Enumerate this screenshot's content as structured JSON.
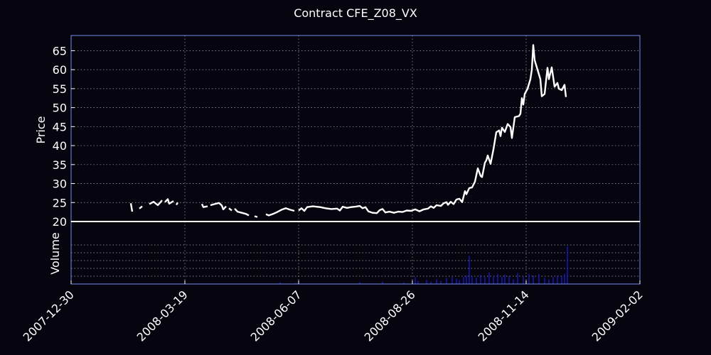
{
  "chart_data": {
    "type": "line",
    "title": "Contract CFE_Z08_VX",
    "background": "#06040e",
    "frame_color": "#6f8fe8",
    "grid": true,
    "price_panel": {
      "ylabel": "Price",
      "ylim": [
        20,
        69
      ],
      "yticks": [
        "20",
        "25",
        "30",
        "35",
        "40",
        "45",
        "50",
        "55",
        "60",
        "65"
      ],
      "baseline": 20,
      "series": [
        {
          "color": "#ffffff",
          "segments": [
            [
              [
                "2008-02-10",
                24.8
              ],
              [
                "2008-02-11",
                22.6
              ]
            ],
            [
              [
                "2008-02-16",
                23.4
              ],
              [
                "2008-02-18",
                24.0
              ]
            ],
            [
              [
                "2008-02-23",
                24.6
              ],
              [
                "2008-02-26",
                25.2
              ],
              [
                "2008-02-29",
                24.3
              ],
              [
                "2008-03-03",
                25.6
              ]
            ],
            [
              [
                "2008-03-05",
                25.1
              ],
              [
                "2008-03-07",
                25.9
              ],
              [
                "2008-03-08",
                24.7
              ],
              [
                "2008-03-11",
                25.4
              ]
            ],
            [
              [
                "2008-03-13",
                24.4
              ],
              [
                "2008-03-14",
                25.0
              ]
            ],
            [
              [
                "2008-03-31",
                24.6
              ],
              [
                "2008-04-01",
                23.8
              ],
              [
                "2008-04-04",
                24.0
              ]
            ],
            [
              [
                "2008-04-06",
                24.3
              ],
              [
                "2008-04-09",
                24.6
              ],
              [
                "2008-04-12",
                24.9
              ],
              [
                "2008-04-14",
                24.2
              ],
              [
                "2008-04-15",
                23.2
              ],
              [
                "2008-04-17",
                24.0
              ]
            ],
            [
              [
                "2008-04-19",
                23.5
              ],
              [
                "2008-04-21",
                22.9
              ]
            ],
            [
              [
                "2008-04-23",
                23.4
              ],
              [
                "2008-04-25",
                22.6
              ],
              [
                "2008-04-28",
                22.3
              ],
              [
                "2008-05-01",
                22.0
              ],
              [
                "2008-05-03",
                21.6
              ]
            ],
            [
              [
                "2008-05-07",
                21.4
              ],
              [
                "2008-05-09",
                21.2
              ]
            ],
            [
              [
                "2008-05-15",
                21.9
              ],
              [
                "2008-05-17",
                21.6
              ],
              [
                "2008-05-20",
                22.0
              ],
              [
                "2008-05-23",
                22.5
              ],
              [
                "2008-05-26",
                23.1
              ],
              [
                "2008-05-29",
                23.5
              ],
              [
                "2008-06-01",
                23.1
              ],
              [
                "2008-06-04",
                22.8
              ]
            ],
            [
              [
                "2008-06-07",
                22.9
              ],
              [
                "2008-06-09",
                23.5
              ],
              [
                "2008-06-11",
                22.8
              ],
              [
                "2008-06-13",
                23.8
              ],
              [
                "2008-06-17",
                24.0
              ],
              [
                "2008-06-22",
                23.8
              ],
              [
                "2008-06-26",
                23.5
              ],
              [
                "2008-06-30",
                23.3
              ],
              [
                "2008-07-04",
                23.4
              ],
              [
                "2008-07-06",
                22.9
              ],
              [
                "2008-07-08",
                23.9
              ],
              [
                "2008-07-11",
                23.6
              ],
              [
                "2008-07-14",
                23.8
              ],
              [
                "2008-07-17",
                23.9
              ],
              [
                "2008-07-20",
                24.1
              ],
              [
                "2008-07-22",
                23.5
              ],
              [
                "2008-07-24",
                23.8
              ],
              [
                "2008-07-26",
                22.7
              ],
              [
                "2008-07-29",
                22.3
              ],
              [
                "2008-08-01",
                22.2
              ],
              [
                "2008-08-03",
                23.0
              ],
              [
                "2008-08-05",
                23.3
              ],
              [
                "2008-08-07",
                22.4
              ],
              [
                "2008-08-10",
                22.6
              ],
              [
                "2008-08-13",
                22.3
              ],
              [
                "2008-08-16",
                22.6
              ],
              [
                "2008-08-19",
                22.5
              ],
              [
                "2008-08-22",
                22.9
              ],
              [
                "2008-08-25",
                22.8
              ],
              [
                "2008-08-28",
                23.2
              ],
              [
                "2008-08-31",
                22.7
              ],
              [
                "2008-09-03",
                23.2
              ],
              [
                "2008-09-06",
                23.4
              ],
              [
                "2008-09-08",
                24.0
              ],
              [
                "2008-09-10",
                23.6
              ],
              [
                "2008-09-12",
                24.3
              ],
              [
                "2008-09-15",
                24.1
              ],
              [
                "2008-09-17",
                24.8
              ],
              [
                "2008-09-19",
                25.1
              ],
              [
                "2008-09-20",
                24.4
              ],
              [
                "2008-09-22",
                25.2
              ],
              [
                "2008-09-24",
                24.6
              ],
              [
                "2008-09-26",
                25.8
              ],
              [
                "2008-09-28",
                26.0
              ],
              [
                "2008-09-30",
                25.1
              ],
              [
                "2008-10-02",
                28.0
              ],
              [
                "2008-10-03",
                27.2
              ],
              [
                "2008-10-05",
                28.8
              ],
              [
                "2008-10-07",
                29.0
              ],
              [
                "2008-10-09",
                30.5
              ],
              [
                "2008-10-11",
                34.0
              ],
              [
                "2008-10-13",
                32.0
              ],
              [
                "2008-10-14",
                31.7
              ],
              [
                "2008-10-16",
                35.5
              ],
              [
                "2008-10-17",
                36.1
              ],
              [
                "2008-10-18",
                37.4
              ],
              [
                "2008-10-20",
                35.2
              ],
              [
                "2008-10-22",
                39.0
              ],
              [
                "2008-10-24",
                43.5
              ],
              [
                "2008-10-26",
                44.0
              ],
              [
                "2008-10-27",
                42.5
              ],
              [
                "2008-10-28",
                44.7
              ],
              [
                "2008-10-30",
                43.6
              ],
              [
                "2008-11-01",
                45.7
              ],
              [
                "2008-11-03",
                44.9
              ],
              [
                "2008-11-04",
                42.0
              ],
              [
                "2008-11-06",
                47.5
              ],
              [
                "2008-11-09",
                47.8
              ],
              [
                "2008-11-10",
                48.4
              ],
              [
                "2008-11-11",
                52.5
              ],
              [
                "2008-11-12",
                50.8
              ],
              [
                "2008-11-13",
                53.6
              ],
              [
                "2008-11-15",
                55.0
              ],
              [
                "2008-11-17",
                57.5
              ],
              [
                "2008-11-18",
                60.0
              ],
              [
                "2008-11-19",
                66.5
              ],
              [
                "2008-11-20",
                62.5
              ],
              [
                "2008-11-22",
                60.0
              ],
              [
                "2008-11-24",
                57.5
              ],
              [
                "2008-11-25",
                53.0
              ],
              [
                "2008-11-27",
                53.6
              ],
              [
                "2008-11-29",
                60.5
              ],
              [
                "2008-11-30",
                57.5
              ],
              [
                "2008-12-02",
                60.6
              ],
              [
                "2008-12-04",
                55.5
              ],
              [
                "2008-12-06",
                56.5
              ],
              [
                "2008-12-07",
                55.0
              ],
              [
                "2008-12-09",
                54.6
              ],
              [
                "2008-12-11",
                56.0
              ],
              [
                "2008-12-12",
                52.8
              ]
            ]
          ]
        }
      ]
    },
    "volume_panel": {
      "ylabel": "Volume",
      "color": "#1c1ce0",
      "ylim": [
        0,
        8
      ],
      "gridlines": [
        1,
        2,
        3,
        4,
        5
      ],
      "bars": [
        [
          "2008-05-25",
          0.2
        ],
        [
          "2008-06-05",
          0.15
        ],
        [
          "2008-06-25",
          0.1
        ],
        [
          "2008-07-20",
          0.25
        ],
        [
          "2008-08-05",
          0.3
        ],
        [
          "2008-08-20",
          0.2
        ],
        [
          "2008-08-28",
          0.9
        ],
        [
          "2008-08-30",
          0.4
        ],
        [
          "2008-09-05",
          0.5
        ],
        [
          "2008-09-08",
          0.3
        ],
        [
          "2008-09-12",
          0.6
        ],
        [
          "2008-09-15",
          0.4
        ],
        [
          "2008-09-19",
          0.8
        ],
        [
          "2008-09-23",
          0.9
        ],
        [
          "2008-09-26",
          0.7
        ],
        [
          "2008-09-28",
          0.5
        ],
        [
          "2008-10-01",
          0.9
        ],
        [
          "2008-10-03",
          1.1
        ],
        [
          "2008-10-05",
          3.6
        ],
        [
          "2008-10-07",
          1.0
        ],
        [
          "2008-10-10",
          0.8
        ],
        [
          "2008-10-13",
          1.2
        ],
        [
          "2008-10-16",
          0.9
        ],
        [
          "2008-10-19",
          1.5
        ],
        [
          "2008-10-22",
          1.0
        ],
        [
          "2008-10-25",
          1.3
        ],
        [
          "2008-10-28",
          0.9
        ],
        [
          "2008-10-30",
          1.2
        ],
        [
          "2008-11-02",
          1.0
        ],
        [
          "2008-11-05",
          0.6
        ],
        [
          "2008-11-08",
          1.4
        ],
        [
          "2008-11-12",
          1.0
        ],
        [
          "2008-11-16",
          1.3
        ],
        [
          "2008-11-19",
          1.1
        ],
        [
          "2008-11-23",
          1.3
        ],
        [
          "2008-11-27",
          0.8
        ],
        [
          "2008-11-30",
          0.6
        ],
        [
          "2008-12-03",
          0.9
        ],
        [
          "2008-12-06",
          1.1
        ],
        [
          "2008-12-09",
          1.0
        ],
        [
          "2008-12-11",
          1.3
        ],
        [
          "2008-12-13",
          4.8
        ]
      ]
    },
    "x_axis": {
      "type": "date",
      "range": [
        "2007-12-30",
        "2009-02-02"
      ],
      "tick_labels": [
        "2007-12-30",
        "2008-03-19",
        "2008-06-07",
        "2008-08-26",
        "2008-11-14",
        "2009-02-02"
      ]
    }
  }
}
